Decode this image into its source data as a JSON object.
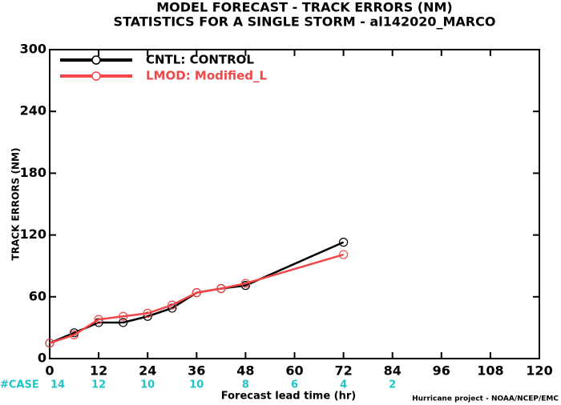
{
  "chart_data": {
    "type": "line",
    "title": "MODEL FORECAST - TRACK ERRORS (NM)",
    "subtitle": "STATISTICS FOR A SINGLE STORM - al142020_MARCO",
    "x_label": "Forecast lead time (hr)",
    "y_label": "TRACK ERRORS (NM)",
    "footer": "Hurricane project - NOAA/NCEP/EMC",
    "x": [
      0,
      6,
      12,
      18,
      24,
      30,
      36,
      42,
      48,
      72
    ],
    "series": [
      {
        "name": "CNTL: CONTROL",
        "color": "#000000",
        "values": [
          15,
          25,
          35,
          35,
          41,
          49,
          64,
          68,
          71,
          113
        ]
      },
      {
        "name": "LMOD: Modified_L",
        "color": "#f04848",
        "values": [
          15,
          23,
          38,
          41,
          44,
          52,
          64,
          68,
          73,
          101
        ]
      }
    ],
    "xlim": [
      0,
      120
    ],
    "xticks": [
      0,
      12,
      24,
      36,
      48,
      60,
      72,
      84,
      96,
      108,
      120
    ],
    "ylim": [
      0,
      300
    ],
    "yticks": [
      0,
      60,
      120,
      180,
      240,
      300
    ],
    "cases": {
      "label": "#CASE",
      "color": "#22c4c4",
      "x": [
        0,
        12,
        24,
        36,
        48,
        60,
        72,
        84
      ],
      "counts": [
        14,
        12,
        10,
        10,
        8,
        6,
        4,
        2
      ]
    }
  }
}
